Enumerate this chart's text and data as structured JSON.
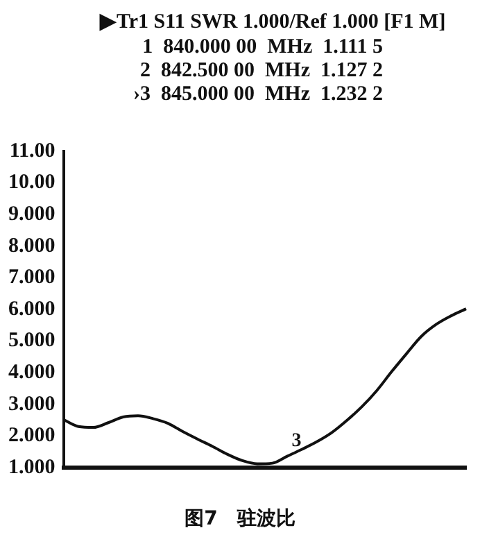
{
  "chart_data": {
    "type": "line",
    "title": "▶Tr1 S11 SWR 1.000/Ref 1.000 [F1 M]",
    "subtitle": "1  840.000 00  MHz  1.111 5\n2  842.500 00  MHz  1.127 2\n›3  845.000 00  MHz  1.232 2",
    "categories": [
      null,
      null,
      null,
      null,
      null,
      null,
      null,
      null,
      null,
      null,
      null,
      null,
      null,
      null,
      null,
      null,
      null,
      null,
      null,
      null,
      null,
      null,
      null,
      null,
      null,
      null,
      null,
      null
    ],
    "values": [
      2.52,
      2.3,
      2.27,
      2.42,
      2.6,
      2.64,
      2.55,
      2.4,
      2.14,
      1.9,
      1.67,
      1.42,
      1.22,
      1.12,
      1.14,
      1.36,
      1.58,
      1.82,
      2.11,
      2.49,
      2.92,
      3.43,
      4.03,
      4.6,
      5.15,
      5.53,
      5.8,
      6.02
    ],
    "color": "#111111",
    "ylim": [
      1,
      11
    ],
    "yticks": [
      {
        "value": 1,
        "label": "1.000"
      },
      {
        "value": 2,
        "label": "2.000"
      },
      {
        "value": 3,
        "label": "3.000"
      },
      {
        "value": 4,
        "label": "4.000"
      },
      {
        "value": 5,
        "label": "5.000"
      },
      {
        "value": 6,
        "label": "6.000"
      },
      {
        "value": 7,
        "label": "7.000"
      },
      {
        "value": 8,
        "label": "8.000"
      },
      {
        "value": 9,
        "label": "9.000"
      },
      {
        "value": 10,
        "label": "10.00"
      },
      {
        "value": 11,
        "label": "11.00"
      }
    ],
    "tick_labels": "y",
    "grid": false,
    "legend": false,
    "marker": "none",
    "annotations": [
      {
        "text": "3",
        "y": 1.45
      },
      "图7　驻波比"
    ]
  }
}
